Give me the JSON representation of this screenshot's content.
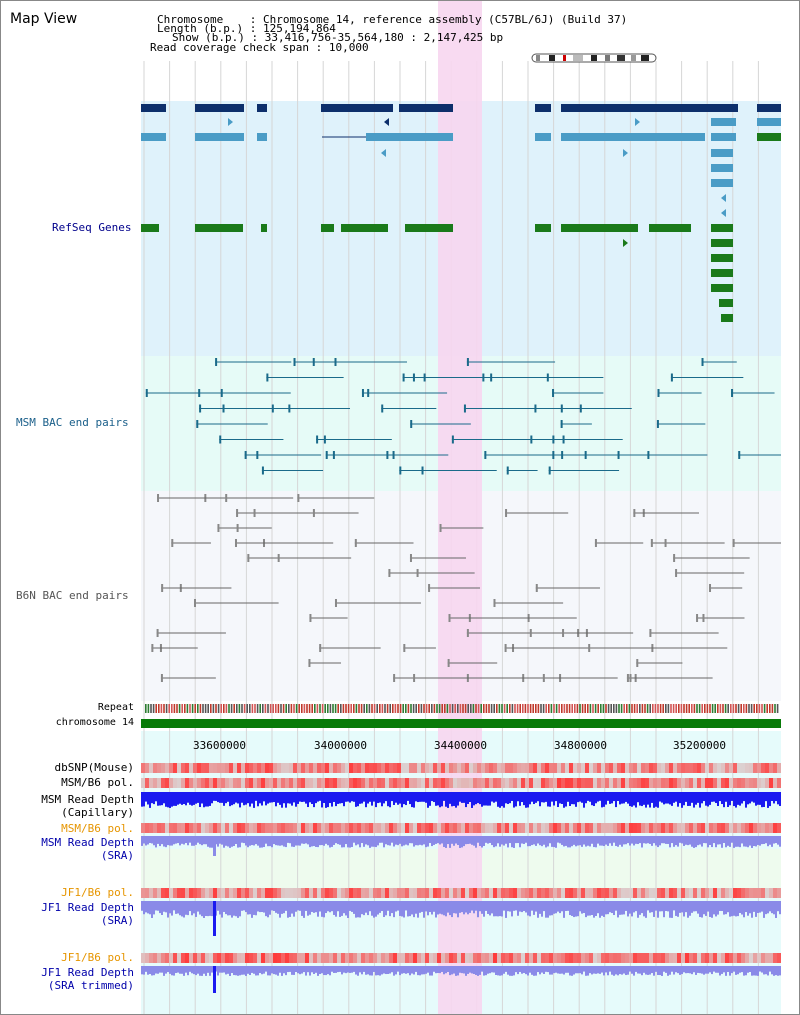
{
  "view_title": "Map View",
  "header": {
    "chromosome_label": "Chromosome",
    "chromosome_value": "Chromosome 14, reference assembly (C57BL/6J) (Build 37)",
    "length_label": "Length (b.p.)",
    "length_value": "125,194,864",
    "show_label": "Show (b.p.)",
    "show_value": "33,416,756-35,564,180 : 2,147,425 bp",
    "coverage_label": "Read coverage check span",
    "coverage_value": "10,000"
  },
  "tracks": {
    "refseq": "RefSeq Genes",
    "msm_bac": "MSM BAC end pairs",
    "b6n_bac": "B6N BAC end pairs",
    "repeat": "Repeat",
    "chromosome": "chromosome 14",
    "dbsnp": "dbSNP(Mouse)",
    "msm_b6_pol_1": "MSM/B6 pol.",
    "msm_read_depth_cap_1": "MSM Read Depth",
    "msm_read_depth_cap_2": "(Capillary)",
    "msm_b6_pol_2": "MSM/B6 pol.",
    "msm_read_depth_sra_1": "MSM Read Depth",
    "msm_read_depth_sra_2": "(SRA)",
    "jf1_b6_pol_1": "JF1/B6 pol.",
    "jf1_read_depth_sra_1": "JF1 Read Depth",
    "jf1_read_depth_sra_2": "(SRA)",
    "jf1_b6_pol_2": "JF1/B6 pol.",
    "jf1_read_depth_trim_1": "JF1 Read Depth",
    "jf1_read_depth_trim_2": "(SRA trimmed)"
  },
  "axis": {
    "ticks": [
      "33600000",
      "34000000",
      "34400000",
      "34800000",
      "35200000"
    ]
  },
  "colors": {
    "refseq_bg": "#dff2fb",
    "bac_bg": "#e6fbf7",
    "b6n_bg": "#f5f7fb",
    "highlight": "#f7d6f0",
    "gene_dark": "#0d2f6b",
    "gene_mid": "#4a9cc6",
    "gene_green": "#1a7a1a",
    "bac_line": "#1a6a8a",
    "b6n_line": "#666666",
    "chromosome": "#087a08",
    "depth_blue": "#1a1af0",
    "depth_light": "#8a8ae8"
  }
}
